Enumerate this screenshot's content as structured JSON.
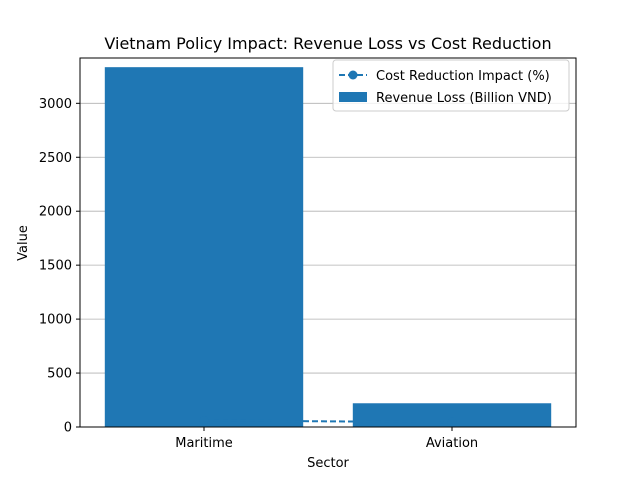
{
  "chart_data": {
    "type": "bar",
    "title": "Vietnam Policy Impact: Revenue Loss vs Cost Reduction",
    "xlabel": "Sector",
    "ylabel": "Value",
    "categories": [
      "Maritime",
      "Aviation"
    ],
    "ylim": [
      0,
      3420
    ],
    "yticks": [
      0,
      500,
      1000,
      1500,
      2000,
      2500,
      3000
    ],
    "grid": "y",
    "legend_position": "top-right",
    "series": [
      {
        "name": "Revenue Loss (Billion VND)",
        "kind": "bar",
        "color": "#1f77b4",
        "values": [
          3335,
          220
        ]
      },
      {
        "name": "Cost Reduction Impact (%)",
        "kind": "line",
        "style": "dashed",
        "marker": "circle",
        "color": "#1f77b4",
        "values": [
          60,
          45
        ]
      }
    ]
  }
}
